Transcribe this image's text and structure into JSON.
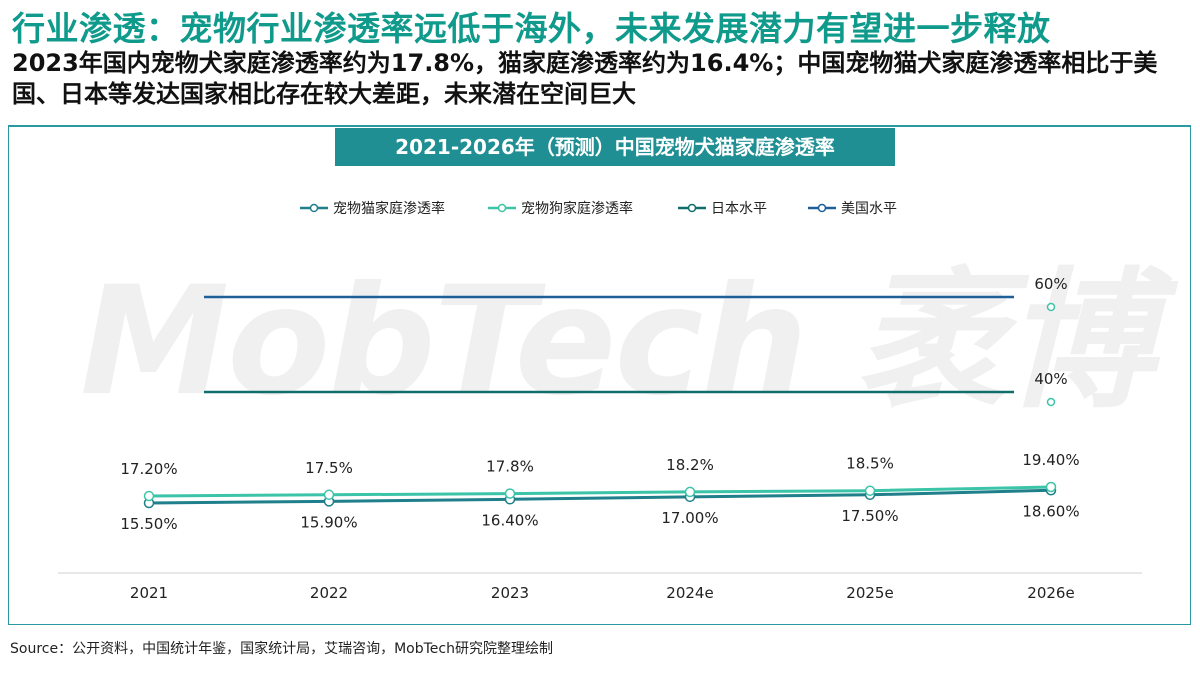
{
  "page": {
    "title": "行业渗透：宠物行业渗透率远低于海外，未来发展潜力有望进一步释放",
    "subtitle": "2023年国内宠物犬家庭渗透率约为17.8%，猫家庭渗透率约为16.4%；中国宠物猫犬家庭渗透率相比于美国、日本等发达国家相比存在较大差距，未来潜在空间巨大",
    "source": "Source：公开资料，中国统计年鉴，国家统计局，艾瑞咨询，MobTech研究院整理绘制",
    "watermark": "MobTech 袤博"
  },
  "chart_data": {
    "type": "line",
    "title": "2021-2026年（预测）中国宠物犬猫家庭渗透率",
    "categories": [
      "2021",
      "2022",
      "2023",
      "2024e",
      "2025e",
      "2026e"
    ],
    "series": [
      {
        "name": "宠物猫家庭渗透率",
        "values": [
          15.5,
          15.9,
          16.4,
          17.0,
          17.5,
          18.6
        ],
        "labels": [
          "15.50%",
          "15.90%",
          "16.40%",
          "17.00%",
          "17.50%",
          "18.60%"
        ],
        "color": "#1f7f8a"
      },
      {
        "name": "宠物狗家庭渗透率",
        "values": [
          17.2,
          17.5,
          17.8,
          18.2,
          18.5,
          19.4
        ],
        "labels": [
          "17.20%",
          "17.5%",
          "17.8%",
          "18.2%",
          "18.5%",
          "19.40%"
        ],
        "color": "#3cc4a8"
      },
      {
        "name": "日本水平",
        "values": [
          40,
          40,
          40,
          40,
          40,
          40
        ],
        "end_label": "40%",
        "color": "#0e6e6a"
      },
      {
        "name": "美国水平",
        "values": [
          60,
          60,
          60,
          60,
          60,
          60
        ],
        "end_label": "60%",
        "color": "#1d5f96"
      }
    ],
    "legend_position": "top-center",
    "grid": false
  }
}
